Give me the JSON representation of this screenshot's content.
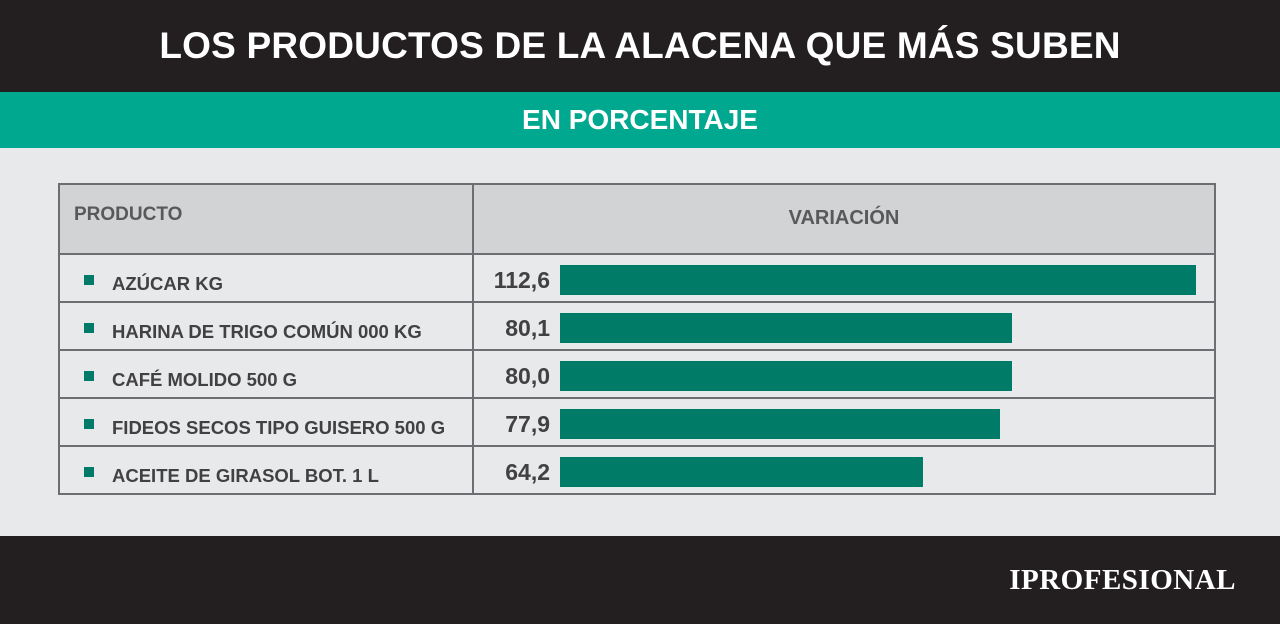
{
  "title": "LOS PRODUCTOS DE LA ALACENA QUE MÁS SUBEN",
  "subtitle": "EN PORCENTAJE",
  "table": {
    "col_product": "PRODUCTO",
    "col_variation": "VARIACIÓN"
  },
  "colors": {
    "bar": "#007b67",
    "accent": "#00a88f",
    "dark": "#231f20"
  },
  "chart_data": {
    "type": "bar",
    "orientation": "horizontal",
    "categories": [
      "AZÚCAR KG",
      "HARINA DE TRIGO COMÚN 000 KG",
      "CAFÉ MOLIDO 500 G",
      "FIDEOS SECOS TIPO GUISERO 500 G",
      "ACEITE DE GIRASOL BOT. 1 L"
    ],
    "values": [
      112.6,
      80.1,
      80.0,
      77.9,
      64.2
    ],
    "value_labels": [
      "112,6",
      "80,1",
      "80,0",
      "77,9",
      "64,2"
    ],
    "xlim": [
      0,
      112.6
    ],
    "grid": false
  },
  "footer": {
    "logo": "IPROFESIONAL"
  }
}
